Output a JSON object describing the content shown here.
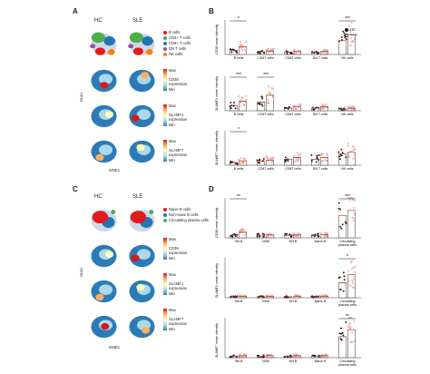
{
  "panels": {
    "A": {
      "label": "A",
      "col_hc": "HC",
      "col_sle": "SLE",
      "legend": [
        {
          "label": "B cells",
          "color": "#e41a1c"
        },
        {
          "label": "CD4+ T cells",
          "color": "#4daf4a"
        },
        {
          "label": "CD8+ T cells",
          "color": "#1f78b4"
        },
        {
          "label": "DN T cells",
          "color": "#984ea3"
        },
        {
          "label": "NK cells",
          "color": "#ff7f00"
        }
      ],
      "markers": [
        {
          "name": "CD38",
          "sub": "expression",
          "max": "Max",
          "min": "Min"
        },
        {
          "name": "SLAMF1",
          "sub": "expression",
          "max": "Max",
          "min": "Min"
        },
        {
          "name": "SLAMF7",
          "sub": "expression",
          "max": "Max",
          "min": "Min"
        }
      ],
      "tsne2": "tSNE2",
      "tsne1": "tSNE1"
    },
    "C": {
      "label": "C",
      "col_hc": "HC",
      "col_sle": "SLE",
      "legend": [
        {
          "label": "Naive B cells",
          "color": "#e41a1c"
        },
        {
          "label": "Non-naive B cells",
          "color": "#1f78b4"
        },
        {
          "label": "Circulating plasma cells",
          "color": "#4daf4a"
        }
      ],
      "markers": [
        {
          "name": "CD38",
          "sub": "expression",
          "max": "Max",
          "min": "Min"
        },
        {
          "name": "SLAMF1",
          "sub": "expression",
          "max": "Max",
          "min": "Min"
        },
        {
          "name": "SLAMF7",
          "sub": "expression",
          "max": "Max",
          "min": "Min"
        }
      ],
      "tsne2": "tSNE2",
      "tsne1": "tSNE1"
    },
    "B": {
      "label": "B",
      "legend_hc": "HC",
      "legend_sle": "SLE"
    },
    "D": {
      "label": "D"
    }
  },
  "chart_data": [
    {
      "type": "bar",
      "panel": "B",
      "ylabel": "CD38 mean intensity",
      "categories": [
        "B cells",
        "CD4T cells",
        "CD8T cells",
        "DN T cells",
        "NK cells"
      ],
      "series": [
        {
          "name": "HC",
          "values": [
            1.0,
            0.6,
            0.5,
            0.5,
            3.2
          ]
        },
        {
          "name": "SLE",
          "values": [
            1.8,
            0.8,
            0.7,
            0.7,
            4.5
          ]
        }
      ],
      "ylim": [
        0,
        8
      ],
      "significance": [
        {
          "category": "B cells",
          "label": "*"
        },
        {
          "category": "NK cells",
          "label": "***"
        }
      ]
    },
    {
      "type": "bar",
      "panel": "B",
      "ylabel": "SLAMF1 mean intensity",
      "categories": [
        "B cells",
        "CD4T cells",
        "CD8T cells",
        "DN T cells",
        "NK cells"
      ],
      "series": [
        {
          "name": "HC",
          "values": [
            1.2,
            2.0,
            0.6,
            0.6,
            0.4
          ]
        },
        {
          "name": "SLE",
          "values": [
            2.2,
            3.6,
            0.9,
            1.0,
            0.6
          ]
        }
      ],
      "ylim": [
        0,
        8
      ],
      "significance": [
        {
          "category": "B cells",
          "label": "***"
        },
        {
          "category": "CD4T cells",
          "label": "***"
        }
      ]
    },
    {
      "type": "bar",
      "panel": "B",
      "ylabel": "SLAMF7 mean intensity",
      "categories": [
        "B cells",
        "CD4T cells",
        "CD8T cells",
        "DN T cells",
        "NK cells"
      ],
      "series": [
        {
          "name": "HC",
          "values": [
            0.6,
            0.9,
            1.4,
            1.4,
            2.6
          ]
        },
        {
          "name": "SLE",
          "values": [
            1.0,
            1.2,
            1.8,
            1.8,
            3.0
          ]
        }
      ],
      "ylim": [
        0,
        8
      ],
      "significance": [
        {
          "category": "B cells",
          "label": "*"
        }
      ]
    },
    {
      "type": "bar",
      "panel": "D",
      "ylabel": "CD38 mean intensity",
      "categories": [
        "SM B",
        "NSM",
        "DN B",
        "Naive B",
        "Circulating plasma cells"
      ],
      "series": [
        {
          "name": "HC",
          "values": [
            0.5,
            0.5,
            0.5,
            0.5,
            4.5
          ]
        },
        {
          "name": "SLE",
          "values": [
            1.1,
            0.6,
            0.6,
            0.6,
            5.5
          ]
        }
      ],
      "ylim": [
        0,
        8
      ],
      "significance": [
        {
          "category": "SM B",
          "label": "**"
        },
        {
          "category": "Circulating plasma cells",
          "label": "***"
        }
      ]
    },
    {
      "type": "bar",
      "panel": "D",
      "ylabel": "SLAMF1 mean intensity",
      "categories": [
        "SM B",
        "NSM",
        "DN B",
        "Naive B",
        "Circulating plasma cells"
      ],
      "series": [
        {
          "name": "HC",
          "values": [
            0.2,
            0.2,
            0.2,
            0.2,
            3.0
          ]
        },
        {
          "name": "SLE",
          "values": [
            0.3,
            0.3,
            0.3,
            0.3,
            4.6
          ]
        }
      ],
      "ylim": [
        0,
        8
      ],
      "significance": [
        {
          "category": "Circulating plasma cells",
          "label": "*"
        }
      ]
    },
    {
      "type": "bar",
      "panel": "D",
      "ylabel": "SLAMF7 mean intensity",
      "categories": [
        "SM B",
        "NSM",
        "DN B",
        "Naive B",
        "Circulating plasma cells"
      ],
      "series": [
        {
          "name": "HC",
          "values": [
            0.3,
            0.3,
            0.3,
            0.3,
            4.2
          ]
        },
        {
          "name": "SLE",
          "values": [
            0.4,
            0.4,
            0.4,
            0.4,
            5.6
          ]
        }
      ],
      "ylim": [
        0,
        8
      ],
      "significance": [
        {
          "category": "Circulating plasma cells",
          "label": "**"
        }
      ]
    }
  ]
}
